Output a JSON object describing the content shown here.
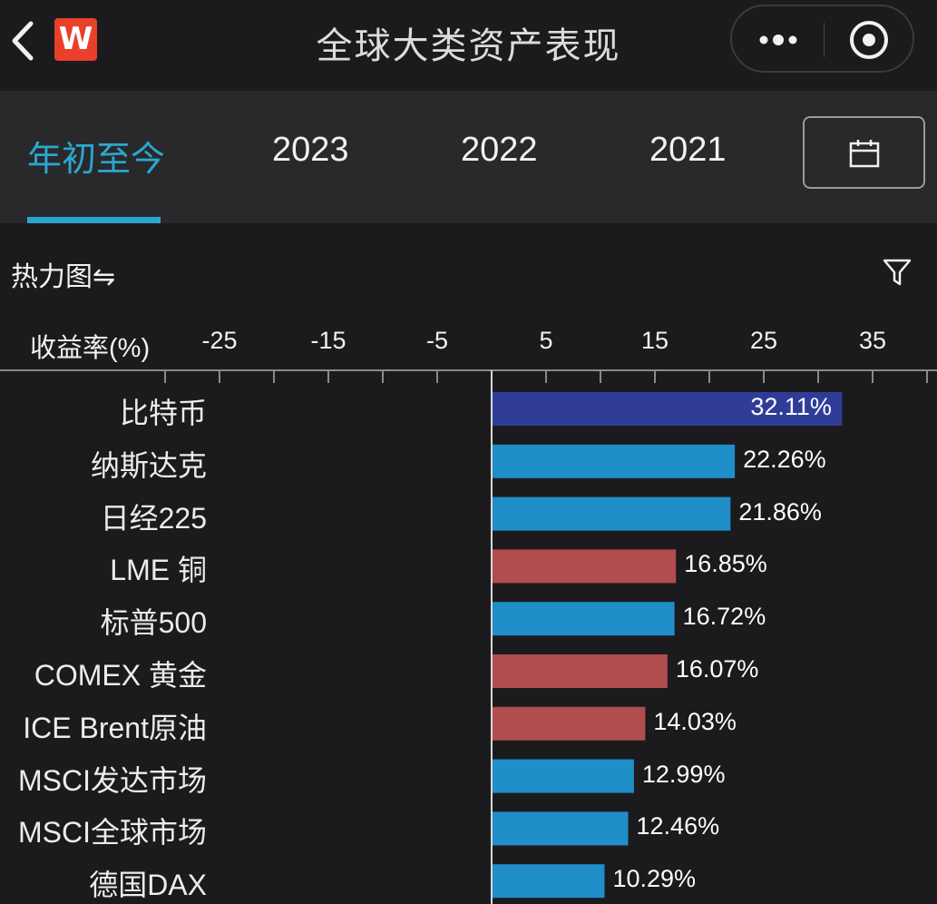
{
  "header": {
    "title": "全球大类资产表现",
    "logo_text": "W"
  },
  "tabs": [
    {
      "label": "年初至今",
      "active": true
    },
    {
      "label": "2023",
      "active": false
    },
    {
      "label": "2022",
      "active": false
    },
    {
      "label": "2021",
      "active": false
    }
  ],
  "toolbar": {
    "view_label": "热力图⇋"
  },
  "colors": {
    "accent": "#2ba7cf",
    "blue": "#1f8ec9",
    "red": "#b24d4f",
    "darkblue": "#2f3d99"
  },
  "chart_data": {
    "type": "bar",
    "orientation": "horizontal",
    "xlabel": "收益率(%)",
    "xticks": [
      -25,
      -15,
      -5,
      5,
      15,
      25,
      35
    ],
    "categories": [
      "比特币",
      "纳斯达克",
      "日经225",
      "LME 铜",
      "标普500",
      "COMEX 黄金",
      "ICE Brent原油",
      "MSCI发达市场",
      "MSCI全球市场",
      "德国DAX"
    ],
    "values": [
      32.11,
      22.26,
      21.86,
      16.85,
      16.72,
      16.07,
      14.03,
      12.99,
      12.46,
      10.29
    ],
    "value_labels": [
      "32.11%",
      "22.26%",
      "21.86%",
      "16.85%",
      "16.72%",
      "16.07%",
      "14.03%",
      "12.99%",
      "12.46%",
      "10.29%"
    ],
    "bar_colors": [
      "#2f3d99",
      "#1f8ec9",
      "#1f8ec9",
      "#b24d4f",
      "#1f8ec9",
      "#b24d4f",
      "#b24d4f",
      "#1f8ec9",
      "#1f8ec9",
      "#1f8ec9"
    ]
  }
}
